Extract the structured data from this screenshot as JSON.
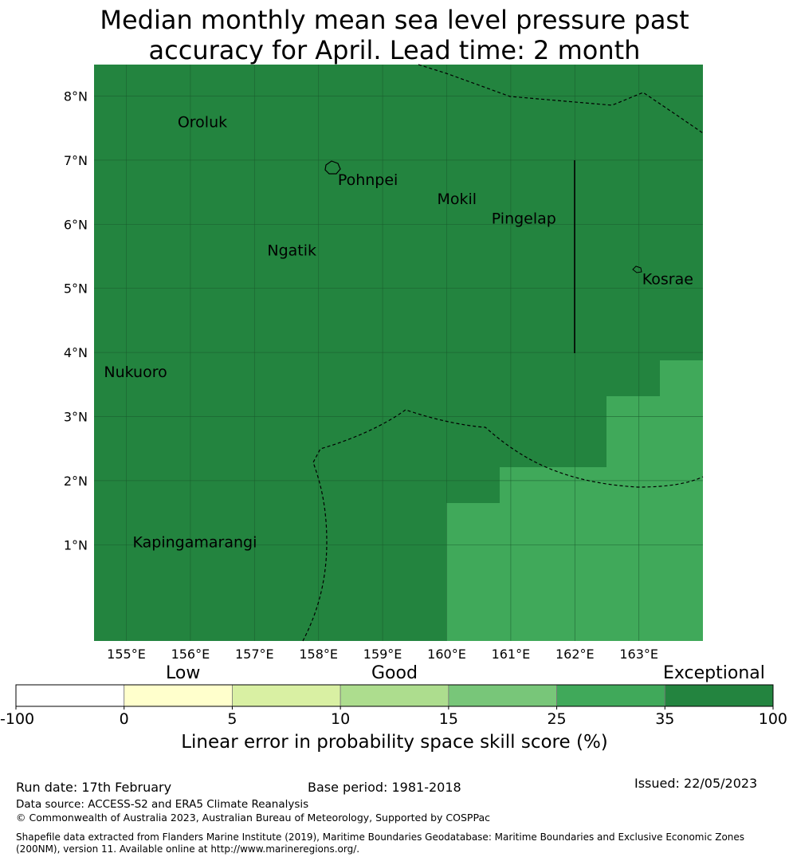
{
  "title_line1": "Median monthly mean sea level pressure past",
  "title_line2": "accuracy for April. Lead time: 2 month",
  "map": {
    "lon_range": [
      154.5,
      164.0
    ],
    "lat_range": [
      -0.5,
      8.5
    ],
    "x_ticks": [
      "155°E",
      "156°E",
      "157°E",
      "158°E",
      "159°E",
      "160°E",
      "161°E",
      "162°E",
      "163°E"
    ],
    "y_ticks": [
      "8°N",
      "7°N",
      "6°N",
      "5°N",
      "4°N",
      "3°N",
      "2°N",
      "1°N"
    ],
    "places": [
      {
        "name": "Oroluk",
        "lon": 155.8,
        "lat": 7.6
      },
      {
        "name": "Pohnpei",
        "lon": 158.3,
        "lat": 6.7
      },
      {
        "name": "Mokil",
        "lon": 159.85,
        "lat": 6.4
      },
      {
        "name": "Pingelap",
        "lon": 160.7,
        "lat": 6.1
      },
      {
        "name": "Ngatik",
        "lon": 157.2,
        "lat": 5.6
      },
      {
        "name": "Kosrae",
        "lon": 163.05,
        "lat": 5.15
      },
      {
        "name": "Nukuoro",
        "lon": 154.65,
        "lat": 3.7
      },
      {
        "name": "Kapingamarangi",
        "lon": 155.1,
        "lat": 1.05
      }
    ],
    "colors": {
      "exceptional": "#23843f",
      "very_good": "#40a95a"
    }
  },
  "colorbar": {
    "categories": {
      "low": "Low",
      "good": "Good",
      "exceptional": "Exceptional"
    },
    "tick_labels": [
      "-100",
      "0",
      "5",
      "10",
      "15",
      "25",
      "35",
      "100"
    ],
    "colors": [
      "#ffffff",
      "#ffffcc",
      "#d9f0a3",
      "#addd8e",
      "#78c679",
      "#40a95a",
      "#23843f"
    ],
    "title": "Linear error in probability space skill score (%)"
  },
  "footer": {
    "run_date": "Run date: 17th February",
    "base_period": "Base period: 1981-2018",
    "issued": "Issued: 22/05/2023",
    "data_source": "Data source: ACCESS-S2 and ERA5 Climate Reanalysis",
    "copyright": "© Commonwealth of Australia 2023, Australian Bureau of Meteorology, Supported by COSPPac",
    "shapefile": "Shapefile data extracted from Flanders Marine Institute (2019), Maritime Boundaries Geodatabase: Maritime Boundaries and Exclusive Economic Zones (200NM), version 11. Available online at http://www.marineregions.org/."
  }
}
